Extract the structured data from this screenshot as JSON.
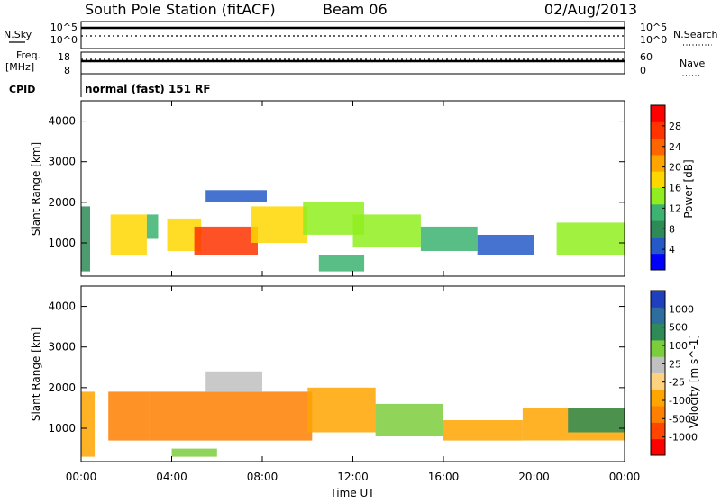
{
  "header": {
    "station": "South Pole Station (fitACF)",
    "beam": "Beam 06",
    "date": "02/Aug/2013"
  },
  "strip_panels": {
    "nsky_label": "N.Sky",
    "nsearch_label": "N.Search",
    "freq_label_line1": "Freq.",
    "freq_label_line2": "[MHz]",
    "nave_label": "Nave",
    "cpid_label": "CPID",
    "cpid_value": "normal (fast) 151 RF",
    "noise_ticks": [
      "10^5",
      "10^0"
    ],
    "freq_ticks": [
      "18",
      "8"
    ],
    "nave_ticks": [
      "60",
      "0"
    ]
  },
  "colors": {
    "power_scale": [
      "#0000ff",
      "#2659c8",
      "#2e8b57",
      "#3cb371",
      "#90ee20",
      "#ffd700",
      "#ffa500",
      "#ff6600",
      "#ff3300",
      "#ff0000"
    ],
    "velocity_scale": [
      "#ff0000",
      "#ff4500",
      "#ff7f00",
      "#ffa500",
      "#ffd27f",
      "#c0c0c0",
      "#7ccd3c",
      "#2e8b57",
      "#2e6e9e",
      "#1f3fbf"
    ]
  },
  "chart_data": [
    {
      "type": "heatmap",
      "name": "power",
      "xlabel": "",
      "ylabel": "Slant Range [km]",
      "xlim": [
        0,
        24
      ],
      "ylim": [
        180,
        4500
      ],
      "y_ticks": [
        "1000",
        "2000",
        "3000",
        "4000"
      ],
      "colorbar_label": "Power [dB]",
      "colorbar_ticks": [
        "4",
        "8",
        "12",
        "16",
        "20",
        "24",
        "28"
      ],
      "patches": [
        {
          "x": [
            0.0,
            0.4
          ],
          "y": [
            300,
            1900
          ],
          "level": 0.2
        },
        {
          "x": [
            1.3,
            2.9
          ],
          "y": [
            700,
            1700
          ],
          "level": 0.5
        },
        {
          "x": [
            2.9,
            3.4
          ],
          "y": [
            1100,
            1700
          ],
          "level": 0.3
        },
        {
          "x": [
            3.8,
            5.3
          ],
          "y": [
            800,
            1600
          ],
          "level": 0.6
        },
        {
          "x": [
            5.0,
            7.8
          ],
          "y": [
            700,
            1400
          ],
          "level": 0.92
        },
        {
          "x": [
            7.5,
            10.0
          ],
          "y": [
            1000,
            1900
          ],
          "level": 0.55
        },
        {
          "x": [
            9.8,
            12.5
          ],
          "y": [
            1200,
            2000
          ],
          "level": 0.4
        },
        {
          "x": [
            12.0,
            15.0
          ],
          "y": [
            900,
            1700
          ],
          "level": 0.45
        },
        {
          "x": [
            15.0,
            17.5
          ],
          "y": [
            800,
            1400
          ],
          "level": 0.3
        },
        {
          "x": [
            17.5,
            20.0
          ],
          "y": [
            700,
            1200
          ],
          "level": 0.15
        },
        {
          "x": [
            21.0,
            24.0
          ],
          "y": [
            700,
            1500
          ],
          "level": 0.45
        },
        {
          "x": [
            5.5,
            8.2
          ],
          "y": [
            2000,
            2300
          ],
          "level": 0.15
        },
        {
          "x": [
            10.5,
            12.5
          ],
          "y": [
            300,
            700
          ],
          "level": 0.35
        }
      ]
    },
    {
      "type": "heatmap",
      "name": "velocity",
      "xlabel": "Time UT",
      "ylabel": "Slant Range [km]",
      "xlim": [
        0,
        24
      ],
      "ylim": [
        180,
        4500
      ],
      "x_ticks": [
        "00:00",
        "04:00",
        "08:00",
        "12:00",
        "16:00",
        "20:00",
        "00:00"
      ],
      "y_ticks": [
        "1000",
        "2000",
        "3000",
        "4000"
      ],
      "colorbar_label": "Velocity [m s^-1]",
      "colorbar_ticks": [
        "1000",
        "500",
        "100",
        "25",
        "-25",
        "-100",
        "-500",
        "-1000"
      ],
      "patches": [
        {
          "x": [
            0.0,
            0.6
          ],
          "y": [
            300,
            1900
          ],
          "level": 0.3
        },
        {
          "x": [
            1.2,
            3.0
          ],
          "y": [
            700,
            1900
          ],
          "level": 0.25
        },
        {
          "x": [
            3.0,
            10.2
          ],
          "y": [
            700,
            1900
          ],
          "level": 0.25
        },
        {
          "x": [
            5.5,
            8.0
          ],
          "y": [
            1900,
            2400
          ],
          "level": 0.55
        },
        {
          "x": [
            10.0,
            13.0
          ],
          "y": [
            900,
            2000
          ],
          "level": 0.3
        },
        {
          "x": [
            13.0,
            16.0
          ],
          "y": [
            800,
            1600
          ],
          "level": 0.7
        },
        {
          "x": [
            16.0,
            19.5
          ],
          "y": [
            700,
            1200
          ],
          "level": 0.3
        },
        {
          "x": [
            19.5,
            24.0
          ],
          "y": [
            700,
            1500
          ],
          "level": 0.3
        },
        {
          "x": [
            4.0,
            6.0
          ],
          "y": [
            300,
            500
          ],
          "level": 0.7
        },
        {
          "x": [
            21.5,
            24.0
          ],
          "y": [
            900,
            1500
          ],
          "level": 0.75
        }
      ]
    }
  ]
}
